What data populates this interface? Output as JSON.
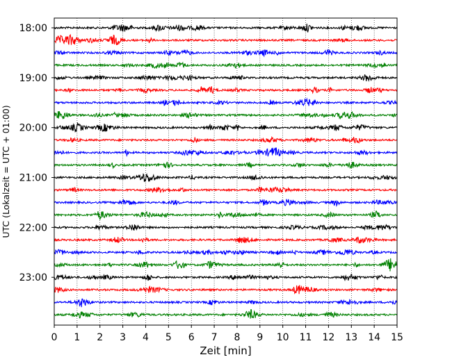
{
  "chart_data": {
    "type": "line",
    "description": "helicorder / seismogram drum plot",
    "xlabel": "Zeit  [min]",
    "ylabel": "UTC (Lokalzeit = UTC + 01:00)",
    "xlim": [
      0,
      15
    ],
    "x_ticks": [
      0,
      1,
      2,
      3,
      4,
      5,
      6,
      7,
      8,
      9,
      10,
      11,
      12,
      13,
      14,
      15
    ],
    "x_tick_labels": [
      "0",
      "1",
      "2",
      "3",
      "4",
      "5",
      "6",
      "7",
      "8",
      "9",
      "10",
      "11",
      "12",
      "13",
      "14",
      "15"
    ],
    "vertical_grid": "dotted",
    "trace_interval_min": 15,
    "y_tick_labels": [
      "18:00",
      "19:00",
      "20:00",
      "21:00",
      "22:00",
      "23:00"
    ],
    "trace_start_times": [
      "18:00",
      "18:15",
      "18:30",
      "18:45",
      "19:00",
      "19:15",
      "19:30",
      "19:45",
      "20:00",
      "20:15",
      "20:30",
      "20:45",
      "21:00",
      "21:15",
      "21:30",
      "21:45",
      "22:00",
      "22:15",
      "22:30",
      "22:45",
      "23:00",
      "23:15",
      "23:30",
      "23:45"
    ],
    "trace_colors": [
      "#000000",
      "#ff0000",
      "#0000ff",
      "#008000"
    ],
    "signal": "continuous low-amplitude seismic noise, no large events"
  }
}
